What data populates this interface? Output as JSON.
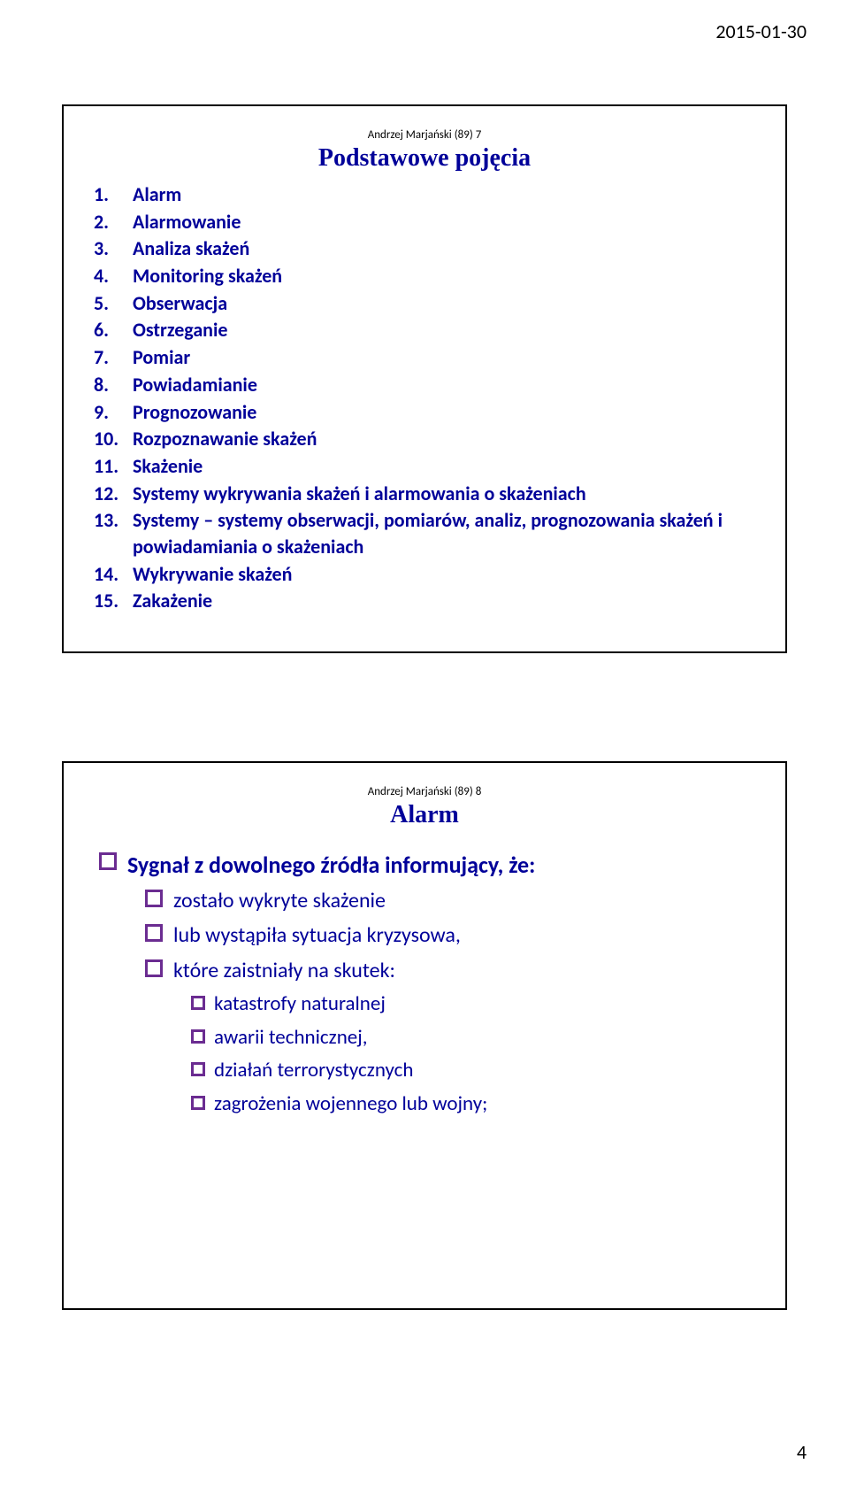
{
  "page": {
    "date": "2015-01-30",
    "number": "4"
  },
  "slide1": {
    "meta": "Andrzej Marjański (89)           7",
    "title": "Podstawowe pojęcia",
    "items": [
      {
        "n": "1.",
        "t": "Alarm"
      },
      {
        "n": "2.",
        "t": "Alarmowanie"
      },
      {
        "n": "3.",
        "t": "Analiza skażeń"
      },
      {
        "n": "4.",
        "t": "Monitoring skażeń"
      },
      {
        "n": "5.",
        "t": "Obserwacja"
      },
      {
        "n": "6.",
        "t": "Ostrzeganie"
      },
      {
        "n": "7.",
        "t": "Pomiar"
      },
      {
        "n": "8.",
        "t": "Powiadamianie"
      },
      {
        "n": "9.",
        "t": "Prognozowanie"
      },
      {
        "n": "10.",
        "t": "Rozpoznawanie skażeń"
      },
      {
        "n": "11.",
        "t": "Skażenie"
      },
      {
        "n": "12.",
        "t": "Systemy wykrywania skażeń i alarmowania o skażeniach"
      },
      {
        "n": "13.",
        "t": "Systemy – systemy obserwacji, pomiarów, analiz, prognozowania skażeń i powiadamiania o skażeniach"
      },
      {
        "n": "14.",
        "t": "Wykrywanie skażeń"
      },
      {
        "n": "15.",
        "t": "Zakażenie"
      }
    ]
  },
  "slide2": {
    "meta": "Andrzej Marjański (89)           8",
    "title": "Alarm",
    "l1": "Sygnał z dowolnego źródła informujący, że:",
    "l2a": "zostało wykryte skażenie",
    "l2b": "lub wystąpiła sytuacja kryzysowa,",
    "l2c": "które  zaistniały na skutek:",
    "l3a": "katastrofy naturalnej",
    "l3b": "awarii technicznej,",
    "l3c": "działań terrorystycznych",
    "l3d": "zagrożenia  wojennego lub wojny;"
  },
  "colors": {
    "text_primary": "#000099",
    "bullet_border": "#6b2c91",
    "page_text": "#000000",
    "background": "#ffffff"
  }
}
